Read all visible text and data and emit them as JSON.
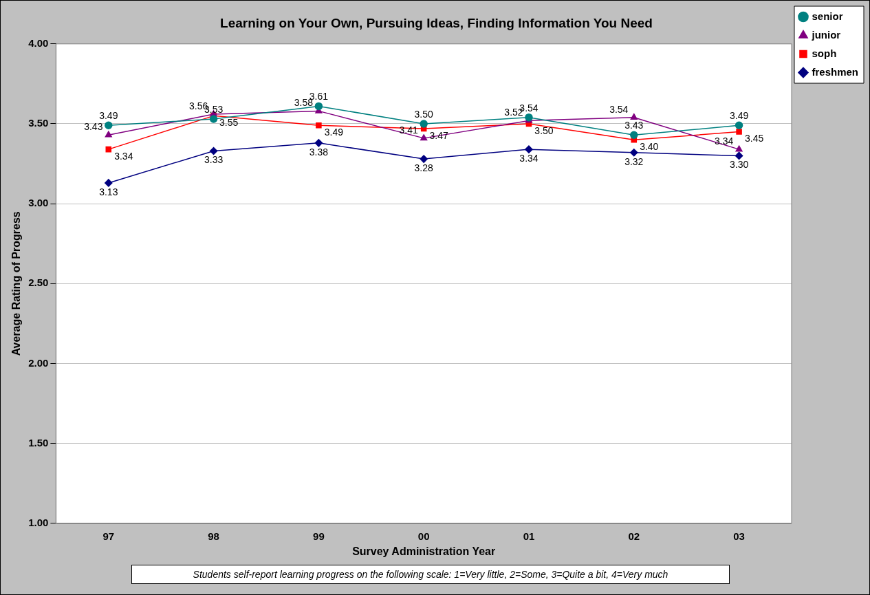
{
  "chart_data": {
    "type": "line",
    "title": "Learning on Your Own, Pursuing Ideas, Finding Information You Need",
    "xlabel": "Survey Administration Year",
    "ylabel": "Average Rating of Progress",
    "categories": [
      "97",
      "98",
      "99",
      "00",
      "01",
      "02",
      "03"
    ],
    "series": [
      {
        "name": "senior",
        "color": "#008080",
        "marker": "circle",
        "values": [
          3.49,
          3.53,
          3.61,
          3.5,
          3.54,
          3.43,
          3.49
        ],
        "value_labels": [
          "3.49",
          "3.53",
          "3.61",
          "3.50",
          "3.54",
          "3.43",
          "3.49"
        ]
      },
      {
        "name": "junior",
        "color": "#800080",
        "marker": "triangle",
        "values": [
          3.43,
          3.56,
          3.58,
          3.41,
          3.52,
          3.54,
          3.34
        ],
        "value_labels": [
          "3.43",
          "3.56",
          "3.58",
          "3.41",
          "3.52",
          "3.54",
          "3.34"
        ]
      },
      {
        "name": "soph",
        "color": "#ff0000",
        "marker": "square",
        "values": [
          3.34,
          3.55,
          3.49,
          3.47,
          3.5,
          3.4,
          3.45
        ],
        "value_labels": [
          "3.34",
          "3.55",
          "3.49",
          "3.47",
          "3.50",
          "3.40",
          "3.45"
        ]
      },
      {
        "name": "freshmen",
        "color": "#000080",
        "marker": "diamond",
        "values": [
          3.13,
          3.33,
          3.38,
          3.28,
          3.34,
          3.32,
          3.3
        ],
        "value_labels": [
          "3.13",
          "3.33",
          "3.38",
          "3.28",
          "3.34",
          "3.32",
          "3.30"
        ]
      }
    ],
    "ylim": [
      1,
      4
    ],
    "yticks": [
      {
        "value": 1,
        "label": "1.00"
      },
      {
        "value": 1.5,
        "label": "1.50"
      },
      {
        "value": 2,
        "label": "2.00"
      },
      {
        "value": 2.5,
        "label": "2.50"
      },
      {
        "value": 3,
        "label": "3.00"
      },
      {
        "value": 3.5,
        "label": "3.50"
      },
      {
        "value": 4,
        "label": "4.00"
      }
    ],
    "grid": "y",
    "legend": "right",
    "line_style": "solid",
    "annotations": [
      "Students self-report learning progress on the following scale:  1=Very little, 2=Some, 3=Quite a bit, 4=Very much"
    ]
  }
}
